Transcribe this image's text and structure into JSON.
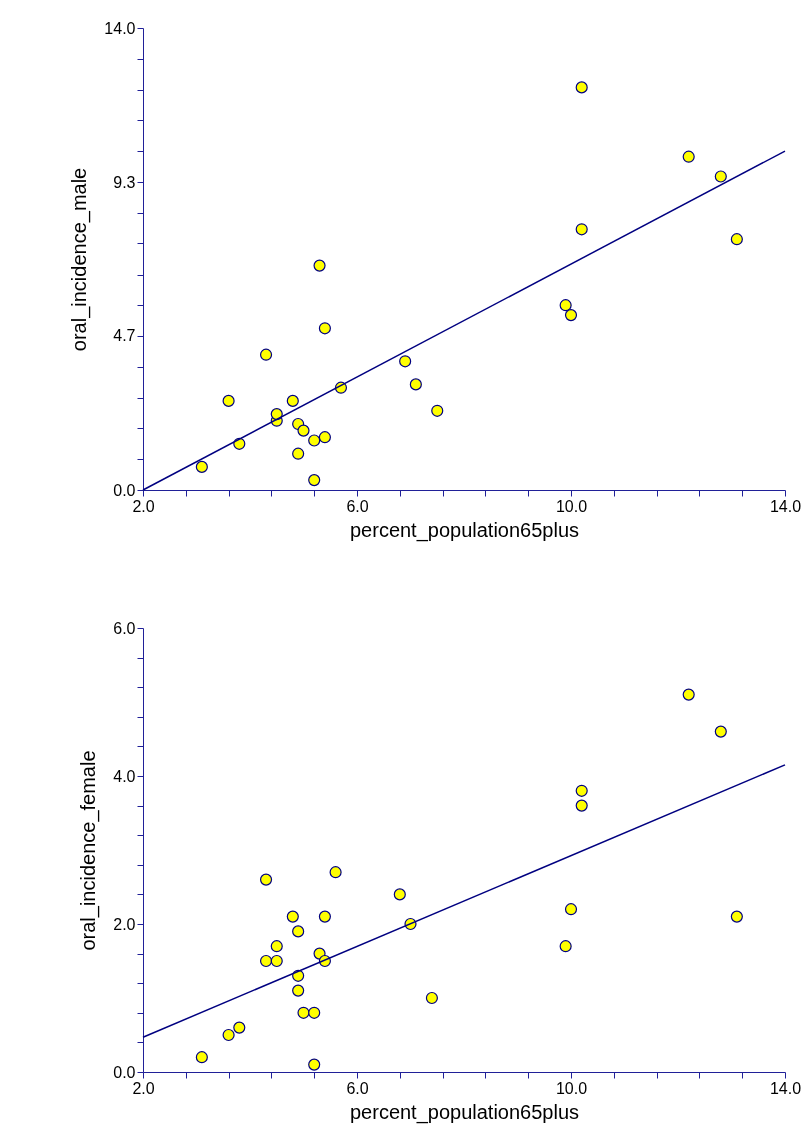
{
  "chart_data": [
    {
      "type": "scatter",
      "xlabel": "percent_population65plus",
      "ylabel": "oral_incidence_male",
      "grid": false,
      "legend": false,
      "xlim": [
        2,
        14
      ],
      "ylim": [
        0,
        14
      ],
      "xticks": [
        {
          "value": 2,
          "label": "2.0"
        },
        {
          "value": 2.8,
          "label": null
        },
        {
          "value": 3.6,
          "label": null
        },
        {
          "value": 4.4,
          "label": null
        },
        {
          "value": 5.2,
          "label": null
        },
        {
          "value": 6,
          "label": "6.0"
        },
        {
          "value": 6.8,
          "label": null
        },
        {
          "value": 7.6,
          "label": null
        },
        {
          "value": 8.4,
          "label": null
        },
        {
          "value": 9.2,
          "label": null
        },
        {
          "value": 10,
          "label": "10.0"
        },
        {
          "value": 10.8,
          "label": null
        },
        {
          "value": 11.6,
          "label": null
        },
        {
          "value": 12.4,
          "label": null
        },
        {
          "value": 13.2,
          "label": null
        },
        {
          "value": 14,
          "label": "14.0"
        }
      ],
      "yticks": [
        {
          "value": 0,
          "label": "0.0"
        },
        {
          "value": 0.93,
          "label": null
        },
        {
          "value": 1.87,
          "label": null
        },
        {
          "value": 2.8,
          "label": null
        },
        {
          "value": 3.73,
          "label": null
        },
        {
          "value": 4.67,
          "label": "4.7"
        },
        {
          "value": 5.6,
          "label": null
        },
        {
          "value": 6.53,
          "label": null
        },
        {
          "value": 7.47,
          "label": null
        },
        {
          "value": 8.4,
          "label": null
        },
        {
          "value": 9.33,
          "label": "9.3"
        },
        {
          "value": 10.27,
          "label": null
        },
        {
          "value": 11.2,
          "label": null
        },
        {
          "value": 12.13,
          "label": null
        },
        {
          "value": 13.07,
          "label": null
        },
        {
          "value": 14,
          "label": "14.0"
        }
      ],
      "series": [
        {
          "marker": "circle",
          "color": "#ffff00",
          "x": [
            3.1,
            3.6,
            3.8,
            4.3,
            4.5,
            4.5,
            4.8,
            4.9,
            4.9,
            5.0,
            5.2,
            5.2,
            5.3,
            5.4,
            5.4,
            5.7,
            6.9,
            7.1,
            7.5,
            9.9,
            10.0,
            10.2,
            10.2,
            12.2,
            12.8,
            13.1
          ],
          "values": [
            0.7,
            2.7,
            1.4,
            4.1,
            2.1,
            2.3,
            2.7,
            2.0,
            1.1,
            1.8,
            1.5,
            0.3,
            6.8,
            1.6,
            4.9,
            3.1,
            3.9,
            3.2,
            2.4,
            5.6,
            5.3,
            12.2,
            7.9,
            10.1,
            9.5,
            7.6
          ]
        },
        {
          "type": "line",
          "color": "#000080",
          "x": [
            2,
            14
          ],
          "values": [
            0,
            10.27
          ]
        }
      ]
    },
    {
      "type": "scatter",
      "xlabel": "percent_population65plus",
      "ylabel": "oral_incidence_female",
      "grid": false,
      "legend": false,
      "xlim": [
        2,
        14
      ],
      "ylim": [
        0,
        6
      ],
      "xticks": [
        {
          "value": 2,
          "label": "2.0"
        },
        {
          "value": 2.8,
          "label": null
        },
        {
          "value": 3.6,
          "label": null
        },
        {
          "value": 4.4,
          "label": null
        },
        {
          "value": 5.2,
          "label": null
        },
        {
          "value": 6,
          "label": "6.0"
        },
        {
          "value": 6.8,
          "label": null
        },
        {
          "value": 7.6,
          "label": null
        },
        {
          "value": 8.4,
          "label": null
        },
        {
          "value": 9.2,
          "label": null
        },
        {
          "value": 10,
          "label": "10.0"
        },
        {
          "value": 10.8,
          "label": null
        },
        {
          "value": 11.6,
          "label": null
        },
        {
          "value": 12.4,
          "label": null
        },
        {
          "value": 13.2,
          "label": null
        },
        {
          "value": 14,
          "label": "14.0"
        }
      ],
      "yticks": [
        {
          "value": 0,
          "label": "0.0"
        },
        {
          "value": 0.4,
          "label": null
        },
        {
          "value": 0.8,
          "label": null
        },
        {
          "value": 1.2,
          "label": null
        },
        {
          "value": 1.6,
          "label": null
        },
        {
          "value": 2,
          "label": "2.0"
        },
        {
          "value": 2.4,
          "label": null
        },
        {
          "value": 2.8,
          "label": null
        },
        {
          "value": 3.2,
          "label": null
        },
        {
          "value": 3.6,
          "label": null
        },
        {
          "value": 4,
          "label": "4.0"
        },
        {
          "value": 4.4,
          "label": null
        },
        {
          "value": 4.8,
          "label": null
        },
        {
          "value": 5.2,
          "label": null
        },
        {
          "value": 5.6,
          "label": null
        },
        {
          "value": 6,
          "label": "6.0"
        }
      ],
      "series": [
        {
          "marker": "circle",
          "color": "#ffff00",
          "x": [
            3.1,
            3.6,
            3.8,
            4.3,
            4.3,
            4.5,
            4.5,
            4.8,
            4.9,
            4.9,
            4.9,
            5.0,
            5.2,
            5.2,
            5.3,
            5.4,
            5.4,
            5.6,
            6.8,
            7.0,
            7.4,
            9.9,
            10.0,
            10.2,
            10.2,
            12.2,
            12.8,
            13.1
          ],
          "values": [
            0.2,
            0.5,
            0.6,
            2.6,
            1.5,
            1.5,
            1.7,
            2.1,
            1.9,
            1.3,
            1.1,
            0.8,
            0.8,
            0.1,
            1.6,
            1.5,
            2.1,
            2.7,
            2.4,
            2.0,
            1.0,
            1.7,
            2.2,
            3.8,
            3.6,
            5.1,
            4.6,
            2.1
          ]
        },
        {
          "type": "line",
          "color": "#000080",
          "x": [
            2,
            14
          ],
          "values": [
            0.47,
            4.15
          ]
        }
      ]
    }
  ]
}
